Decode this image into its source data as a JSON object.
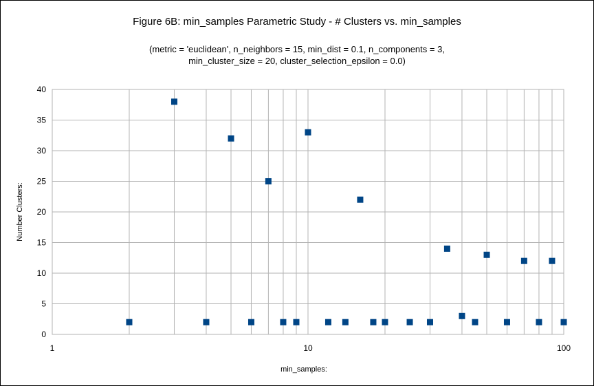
{
  "chart_data": {
    "type": "scatter",
    "title": "Figure 6B: min_samples Parametric Study - # Clusters vs. min_samples",
    "subtitle_lines": [
      "(metric = 'euclidean', n_neighbors = 15, min_dist = 0.1, n_components = 3,",
      "min_cluster_size = 20, cluster_selection_epsilon = 0.0)"
    ],
    "xlabel": "min_samples:",
    "ylabel": "Number Clusters:",
    "x_scale": "log",
    "xlim": [
      1,
      100
    ],
    "ylim": [
      0,
      40
    ],
    "x_tick_labels": [
      "1",
      "10",
      "100"
    ],
    "y_ticks": [
      0,
      5,
      10,
      15,
      20,
      25,
      30,
      35,
      40
    ],
    "grid": true,
    "marker_color": "#004586",
    "points": [
      {
        "x": 2,
        "y": 2
      },
      {
        "x": 3,
        "y": 38
      },
      {
        "x": 4,
        "y": 2
      },
      {
        "x": 5,
        "y": 32
      },
      {
        "x": 6,
        "y": 2
      },
      {
        "x": 7,
        "y": 25
      },
      {
        "x": 8,
        "y": 2
      },
      {
        "x": 9,
        "y": 2
      },
      {
        "x": 10,
        "y": 33
      },
      {
        "x": 12,
        "y": 2
      },
      {
        "x": 14,
        "y": 2
      },
      {
        "x": 16,
        "y": 22
      },
      {
        "x": 18,
        "y": 2
      },
      {
        "x": 20,
        "y": 2
      },
      {
        "x": 25,
        "y": 2
      },
      {
        "x": 30,
        "y": 2
      },
      {
        "x": 35,
        "y": 14
      },
      {
        "x": 40,
        "y": 3
      },
      {
        "x": 45,
        "y": 2
      },
      {
        "x": 50,
        "y": 13
      },
      {
        "x": 60,
        "y": 2
      },
      {
        "x": 70,
        "y": 12
      },
      {
        "x": 80,
        "y": 2
      },
      {
        "x": 90,
        "y": 12
      },
      {
        "x": 100,
        "y": 2
      }
    ]
  }
}
